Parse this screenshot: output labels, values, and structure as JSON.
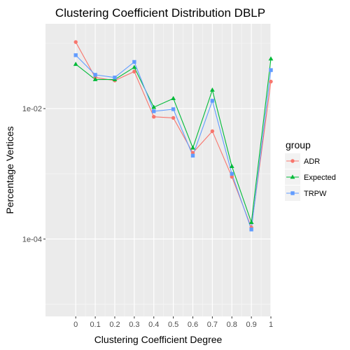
{
  "chart_data": {
    "type": "line",
    "title": "Clustering Coefficient Distribution DBLP",
    "xlabel": "Clustering Coefficient Degree",
    "ylabel": "Percentage Vertices",
    "x": [
      0,
      0.1,
      0.2,
      0.3,
      0.4,
      0.5,
      0.6,
      0.7,
      0.8,
      0.9,
      1
    ],
    "x_tick_labels": [
      "0",
      "0.1",
      "0.2",
      "0.3",
      "0.4",
      "0.5",
      "0.6",
      "0.7",
      "0.8",
      "0.9",
      "1"
    ],
    "xlim": [
      -0.155,
      1.0
    ],
    "y_scale": "log10",
    "ylim": [
      6.5e-06,
      0.2
    ],
    "y_ticks": [
      0.01,
      0.0001
    ],
    "y_tick_labels": [
      "1e-02",
      "1e-04"
    ],
    "grid": true,
    "legend": {
      "title": "group",
      "position": "right"
    },
    "series": [
      {
        "name": "ADR",
        "color": "#F8766D",
        "marker": "circle",
        "values": [
          0.105,
          0.03,
          0.027,
          0.037,
          0.0075,
          0.0072,
          0.0021,
          0.0045,
          0.0009,
          0.00015,
          0.026
        ]
      },
      {
        "name": "Expected",
        "color": "#00BA38",
        "marker": "triangle",
        "values": [
          0.048,
          0.028,
          0.028,
          0.043,
          0.0105,
          0.0143,
          0.0025,
          0.0193,
          0.0013,
          0.00018,
          0.058
        ]
      },
      {
        "name": "TRPW",
        "color": "#619CFF",
        "marker": "square",
        "values": [
          0.066,
          0.033,
          0.03,
          0.052,
          0.0091,
          0.0098,
          0.0019,
          0.0132,
          0.001,
          0.00014,
          0.039
        ]
      }
    ]
  }
}
